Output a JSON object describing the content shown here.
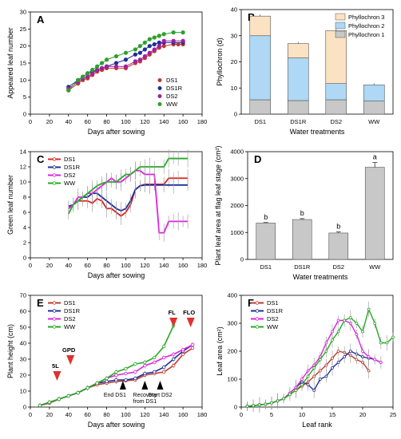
{
  "chart_data": [
    {
      "panel": "A",
      "type": "line",
      "xlabel": "Days after sowing",
      "ylabel": "Appeared leaf number",
      "xlim": [
        0,
        180
      ],
      "ylim": [
        0,
        30
      ],
      "xticks": [
        0,
        20,
        40,
        60,
        80,
        100,
        120,
        140,
        160,
        180
      ],
      "yticks": [
        0,
        5,
        10,
        15,
        20,
        25,
        30
      ],
      "legend_position": "bottom-right",
      "series": [
        {
          "name": "DS1",
          "color": "#c0392b",
          "x": [
            40,
            50,
            55,
            60,
            65,
            70,
            75,
            80,
            90,
            100,
            110,
            115,
            120,
            125,
            130,
            135,
            140,
            150,
            155,
            160
          ],
          "y": [
            7,
            9,
            10,
            10.5,
            11.5,
            12.5,
            13,
            13.5,
            13.5,
            13.5,
            15,
            15.5,
            16.5,
            17.5,
            18.5,
            19.5,
            20,
            20.5,
            20.5,
            20.5
          ]
        },
        {
          "name": "DS1R",
          "color": "#1f2f99",
          "x": [
            40,
            50,
            55,
            60,
            65,
            70,
            75,
            80,
            90,
            100,
            110,
            115,
            120,
            125,
            130,
            135,
            140,
            150,
            160
          ],
          "y": [
            8,
            10,
            11,
            12,
            12.5,
            13,
            13.5,
            14,
            15,
            16,
            17.5,
            18,
            19,
            20,
            20.5,
            21,
            21,
            21,
            21
          ]
        },
        {
          "name": "DS2",
          "color": "#a020a0",
          "x": [
            40,
            50,
            55,
            60,
            65,
            70,
            75,
            80,
            90,
            100,
            110,
            115,
            120,
            125,
            130,
            135,
            140,
            150,
            160
          ],
          "y": [
            7.5,
            9.5,
            10.5,
            11,
            12,
            13,
            13.5,
            14,
            14,
            14,
            15.5,
            16,
            17,
            18,
            19,
            20,
            21.5,
            21.5,
            21.5
          ]
        },
        {
          "name": "WW",
          "color": "#2ca02c",
          "x": [
            40,
            50,
            55,
            60,
            65,
            70,
            75,
            80,
            90,
            100,
            110,
            115,
            120,
            125,
            130,
            135,
            140,
            150,
            160
          ],
          "y": [
            7,
            10,
            11,
            12,
            13,
            14,
            15,
            16,
            17,
            18,
            19,
            20,
            21,
            22,
            22.5,
            23,
            23.5,
            24,
            24
          ]
        }
      ]
    },
    {
      "panel": "B",
      "type": "bar",
      "xlabel": "Water treatments",
      "ylabel": "Phyllochron (d)",
      "categories": [
        "DS1",
        "DS1R",
        "DS2",
        "WW"
      ],
      "ylim": [
        0,
        40
      ],
      "yticks": [
        0,
        10,
        20,
        30,
        40
      ],
      "legend_position": "top-right",
      "series": [
        {
          "name": "Phyllochron 1",
          "color": "#c8c8c8",
          "values": [
            5.5,
            5.2,
            5.5,
            5
          ]
        },
        {
          "name": "Phyllochron 2",
          "color": "#aed8f5",
          "values": [
            24.5,
            16.3,
            6.2,
            6.2
          ]
        },
        {
          "name": "Phyllochron 3",
          "color": "#fbe2c3",
          "values": [
            7.5,
            5.5,
            20.2,
            0
          ]
        }
      ]
    },
    {
      "panel": "C",
      "type": "line",
      "xlabel": "Days after sowing",
      "ylabel": "Green leaf number",
      "xlim": [
        0,
        180
      ],
      "ylim": [
        0,
        14
      ],
      "xticks": [
        0,
        20,
        40,
        60,
        80,
        100,
        120,
        140,
        160,
        180
      ],
      "yticks": [
        0,
        2,
        4,
        6,
        8,
        10,
        12,
        14
      ],
      "legend_position": "top-left",
      "series": [
        {
          "name": "DS1",
          "color": "#e02020",
          "x": [
            40,
            45,
            50,
            55,
            60,
            65,
            70,
            75,
            80,
            85,
            90,
            95,
            100,
            105,
            110,
            115,
            120,
            125,
            130,
            140,
            145,
            150,
            155,
            165
          ],
          "y": [
            6.5,
            7,
            7.5,
            7.5,
            7.5,
            7.2,
            7.8,
            7.5,
            6.5,
            6.5,
            6,
            5.5,
            6,
            7,
            9,
            9.5,
            9.7,
            9.7,
            9.7,
            9.7,
            10.5,
            10.5,
            10.5,
            10.5
          ]
        },
        {
          "name": "DS1R",
          "color": "#1f2f99",
          "x": [
            40,
            45,
            50,
            55,
            60,
            65,
            70,
            75,
            80,
            85,
            90,
            95,
            100,
            105,
            110,
            115,
            120,
            125,
            130,
            140,
            150,
            165
          ],
          "y": [
            6.8,
            7,
            7.5,
            8,
            8,
            8.5,
            8.5,
            8,
            7.5,
            7,
            6.5,
            6.2,
            6.5,
            7.5,
            9,
            9.5,
            9.6,
            9.6,
            9.6,
            9.6,
            9.6,
            9.6
          ]
        },
        {
          "name": "DS2",
          "color": "#e020e0",
          "x": [
            40,
            45,
            50,
            55,
            60,
            65,
            70,
            75,
            80,
            85,
            90,
            95,
            100,
            105,
            110,
            115,
            120,
            125,
            130,
            135,
            140,
            145,
            150,
            155,
            160,
            165
          ],
          "y": [
            6.5,
            7,
            8,
            8,
            8.5,
            8.5,
            9,
            9.5,
            10,
            10.5,
            10,
            10,
            10.5,
            11,
            11.5,
            11.5,
            11,
            11,
            11,
            3.3,
            3.3,
            4.8,
            4.8,
            4.8,
            4.8,
            4.8
          ]
        },
        {
          "name": "WW",
          "color": "#22aa22",
          "x": [
            40,
            45,
            50,
            55,
            60,
            65,
            70,
            75,
            80,
            85,
            90,
            95,
            100,
            105,
            110,
            115,
            120,
            125,
            130,
            140,
            145,
            150,
            155,
            165
          ],
          "y": [
            5.8,
            7,
            7.5,
            8,
            8.5,
            9,
            9.5,
            9.8,
            10,
            10,
            10,
            10.5,
            11,
            11,
            11.5,
            12,
            12,
            12,
            12,
            12,
            13.1,
            13.1,
            13.1,
            13.1
          ]
        }
      ]
    },
    {
      "panel": "D",
      "type": "bar",
      "xlabel": "Water treatments",
      "ylabel": "Plant leaf area at flag leaf stage (cm²)",
      "categories": [
        "DS1",
        "DS1R",
        "DS2",
        "WW"
      ],
      "values": [
        1350,
        1480,
        980,
        3420
      ],
      "errors": [
        20,
        35,
        40,
        180
      ],
      "letters": [
        "b",
        "b",
        "b",
        "a"
      ],
      "color": "#c8c8c8",
      "ylim": [
        0,
        4000
      ],
      "yticks": [
        0,
        1000,
        2000,
        3000,
        4000
      ]
    },
    {
      "panel": "E",
      "type": "line",
      "xlabel": "Days after sowing",
      "ylabel": "Plant height (cm)",
      "xlim": [
        0,
        180
      ],
      "ylim": [
        0,
        70
      ],
      "xticks": [
        0,
        20,
        40,
        60,
        80,
        100,
        120,
        140,
        160,
        180
      ],
      "yticks": [
        0,
        10,
        20,
        30,
        40,
        50,
        60,
        70
      ],
      "legend_position": "top-left",
      "series": [
        {
          "name": "DS1",
          "color": "#c0392b",
          "x": [
            10,
            20,
            30,
            40,
            50,
            60,
            70,
            80,
            90,
            100,
            110,
            120,
            130,
            140,
            150,
            160,
            170
          ],
          "y": [
            1,
            2.5,
            5,
            7,
            9,
            12,
            14,
            15,
            16,
            16.5,
            17,
            20,
            21,
            22,
            26,
            33,
            37
          ]
        },
        {
          "name": "DS1R",
          "color": "#1f2f99",
          "x": [
            10,
            20,
            30,
            40,
            50,
            60,
            70,
            80,
            90,
            100,
            110,
            120,
            130,
            140,
            150,
            160,
            170
          ],
          "y": [
            1,
            3,
            5,
            7,
            9,
            12,
            15,
            16,
            17,
            17,
            18,
            21,
            22,
            25,
            30,
            35,
            39
          ]
        },
        {
          "name": "DS2",
          "color": "#e020e0",
          "x": [
            10,
            20,
            30,
            40,
            50,
            60,
            70,
            80,
            90,
            100,
            110,
            120,
            130,
            140,
            150,
            160,
            170
          ],
          "y": [
            1,
            3,
            5,
            7,
            9,
            12,
            15,
            18,
            20,
            21,
            22,
            26,
            28,
            31,
            33,
            36,
            39
          ]
        },
        {
          "name": "WW",
          "color": "#22aa22",
          "x": [
            10,
            20,
            30,
            40,
            50,
            60,
            70,
            80,
            90,
            100,
            110,
            120,
            130,
            140,
            150
          ],
          "y": [
            1,
            3,
            5,
            7,
            9,
            12,
            15,
            18,
            22,
            24,
            27,
            28,
            31,
            38,
            51
          ]
        }
      ],
      "annotations": [
        {
          "text": "5L",
          "x": 28,
          "color": "#e03030",
          "direction": "down"
        },
        {
          "text": "GPD",
          "x": 42,
          "color": "#e03030",
          "direction": "down"
        },
        {
          "text": "FL",
          "x": 150,
          "color": "#e03030",
          "direction": "down"
        },
        {
          "text": "FLO",
          "x": 168,
          "color": "#e03030",
          "direction": "down"
        },
        {
          "text": "End DS1",
          "x": 97,
          "color": "#000000",
          "direction": "up"
        },
        {
          "text": "Recovery from DS1",
          "x": 120,
          "color": "#000000",
          "direction": "up"
        },
        {
          "text": "Start DS2",
          "x": 136,
          "color": "#000000",
          "direction": "up"
        }
      ]
    },
    {
      "panel": "F",
      "type": "line",
      "xlabel": "Leaf rank",
      "ylabel": "Leaf area (cm²)",
      "xlim": [
        0,
        25
      ],
      "ylim": [
        0,
        400
      ],
      "xticks": [
        0,
        5,
        10,
        15,
        20,
        25
      ],
      "yticks": [
        0,
        100,
        200,
        300,
        400
      ],
      "legend_position": "top-left",
      "series": [
        {
          "name": "DS1",
          "color": "#c0392b",
          "x": [
            1,
            2,
            3,
            4,
            5,
            6,
            7,
            8,
            9,
            10,
            11,
            12,
            13,
            14,
            15,
            16,
            17,
            18,
            19,
            20,
            21
          ],
          "y": [
            3,
            5,
            8,
            10,
            15,
            22,
            30,
            45,
            60,
            75,
            90,
            110,
            130,
            150,
            175,
            200,
            195,
            185,
            170,
            160,
            130
          ]
        },
        {
          "name": "DS1R",
          "color": "#1f2f99",
          "x": [
            1,
            2,
            3,
            4,
            5,
            6,
            7,
            8,
            9,
            10,
            11,
            12,
            13,
            14,
            15,
            16,
            17,
            18,
            19,
            20,
            21,
            22,
            23
          ],
          "y": [
            3,
            5,
            8,
            10,
            15,
            22,
            30,
            50,
            70,
            90,
            80,
            60,
            100,
            110,
            140,
            160,
            180,
            200,
            190,
            180,
            175,
            170,
            160
          ]
        },
        {
          "name": "DS2",
          "color": "#e020e0",
          "x": [
            1,
            2,
            3,
            4,
            5,
            6,
            7,
            8,
            9,
            10,
            11,
            12,
            13,
            14,
            15,
            16,
            17,
            18,
            19,
            20,
            21,
            22,
            23
          ],
          "y": [
            3,
            5,
            8,
            10,
            15,
            22,
            30,
            50,
            70,
            100,
            130,
            150,
            180,
            230,
            270,
            310,
            310,
            300,
            260,
            200,
            180,
            170,
            160
          ]
        },
        {
          "name": "WW",
          "color": "#22aa22",
          "x": [
            1,
            2,
            3,
            4,
            5,
            6,
            7,
            8,
            9,
            10,
            11,
            12,
            13,
            14,
            15,
            16,
            17,
            18,
            19,
            20,
            21,
            22,
            23,
            24,
            25
          ],
          "y": [
            3,
            5,
            8,
            10,
            15,
            22,
            30,
            45,
            60,
            80,
            110,
            140,
            170,
            200,
            240,
            270,
            310,
            320,
            300,
            270,
            350,
            300,
            230,
            230,
            250
          ]
        }
      ]
    }
  ]
}
